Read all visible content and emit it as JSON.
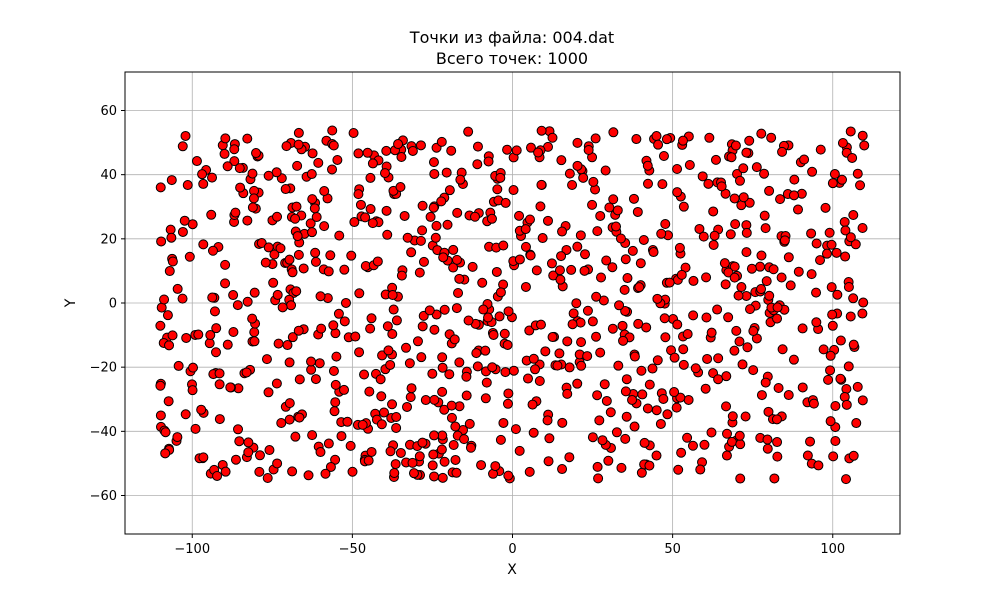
{
  "chart_data": {
    "type": "scatter",
    "title": [
      "Точки из файла: 004.dat",
      "Всего точек: 1000"
    ],
    "xlabel": "X",
    "ylabel": "Y",
    "xlim": [
      -121,
      121
    ],
    "ylim": [
      -72,
      72
    ],
    "xticks": [
      -100,
      -50,
      0,
      50,
      100
    ],
    "yticks": [
      -60,
      -40,
      -20,
      0,
      20,
      40,
      60
    ],
    "xtick_labels": [
      "−100",
      "−50",
      "0",
      "50",
      "100"
    ],
    "ytick_labels": [
      "−60",
      "−40",
      "−20",
      "0",
      "20",
      "40",
      "60"
    ],
    "grid": true,
    "marker_color": "#ff0000",
    "marker_edge_color": "#000000",
    "x_range": [
      -110,
      110
    ],
    "y_range": [
      -55,
      54
    ],
    "point_count": 1000
  }
}
